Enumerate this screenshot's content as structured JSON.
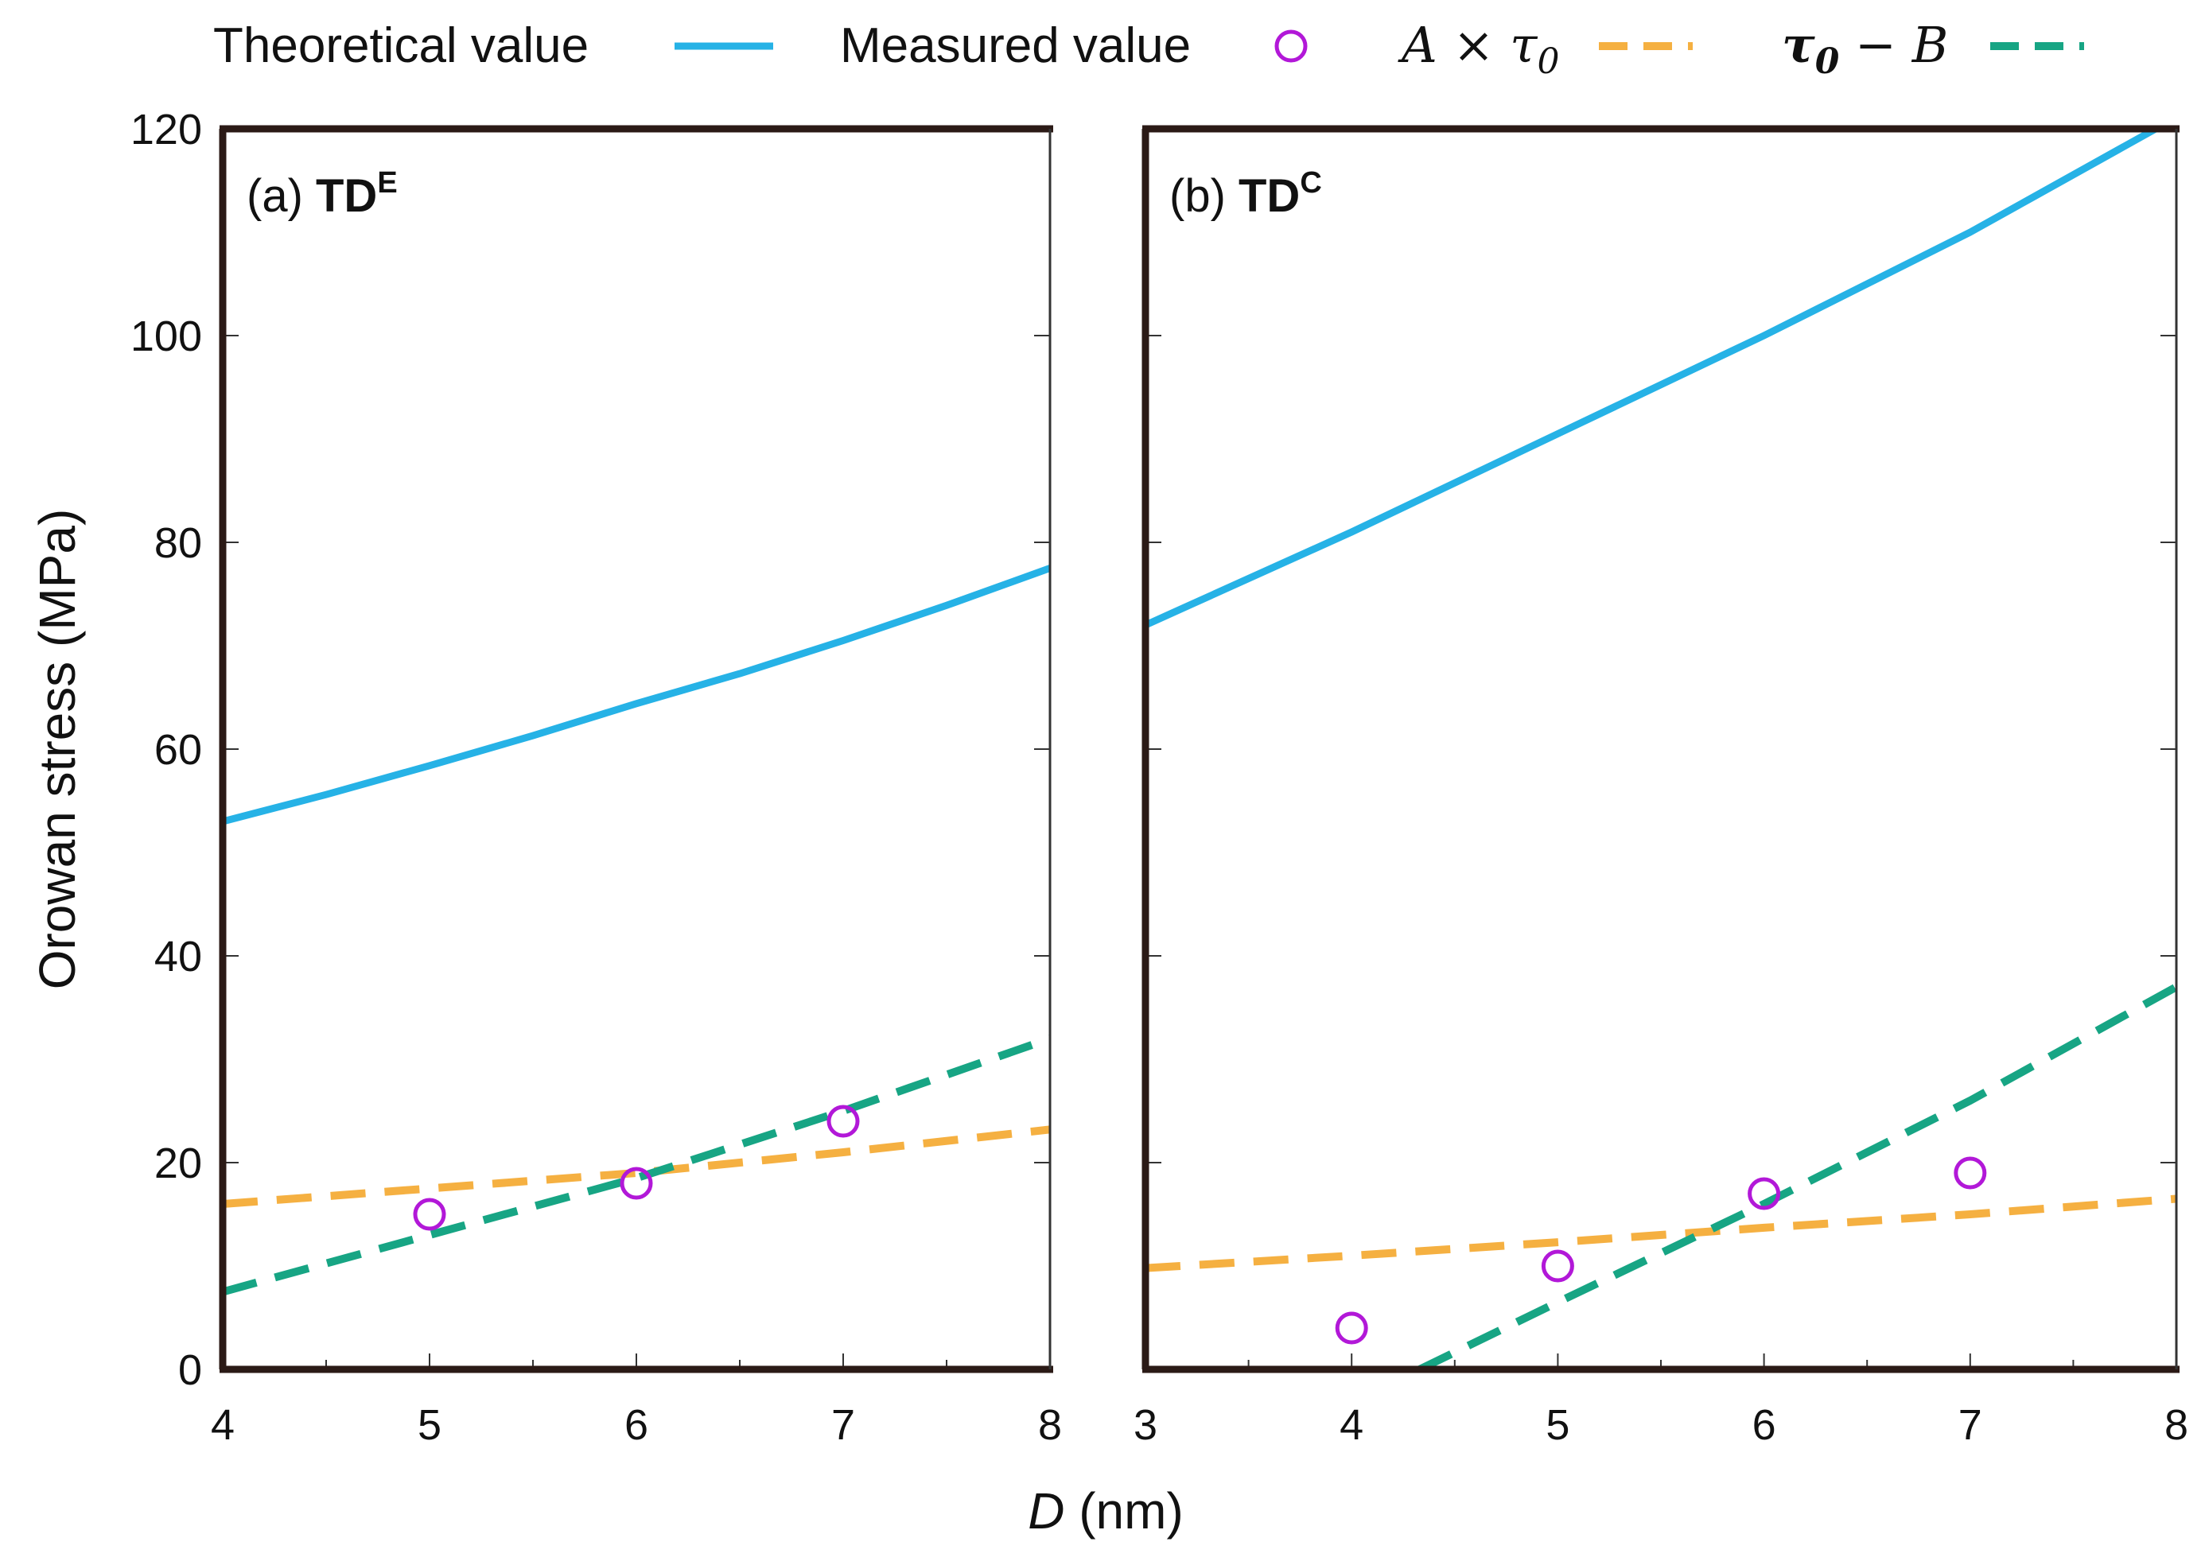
{
  "chart_data": {
    "type": "line",
    "legend": {
      "position": "top",
      "items": [
        {
          "label": "Theoretical value",
          "style": "solid",
          "color": "#26b2e6"
        },
        {
          "label": "Measured value",
          "style": "marker-circle",
          "color": "#b218d8"
        },
        {
          "label": "A × τ",
          "subscript": "0",
          "style": "dashed",
          "color": "#f5b041"
        },
        {
          "label": "τ",
          "subscript": "0",
          "suffix": " − B",
          "style": "dashed",
          "color": "#17a584"
        }
      ]
    },
    "ylabel": "Orowan stress (MPa)",
    "xlabel_italic": "D",
    "xlabel_rest": " (nm)",
    "ylim": [
      0,
      120
    ],
    "yticks": [
      0,
      20,
      40,
      60,
      80,
      100,
      120
    ],
    "panels": [
      {
        "id": "a",
        "label_prefix": "(a) ",
        "label_main": "TD",
        "label_sup": "E",
        "xlim": [
          4,
          8
        ],
        "xticks": [
          4,
          5,
          6,
          7,
          8
        ],
        "series": [
          {
            "name": "Theoretical value",
            "kind": "line",
            "color": "#26b2e6",
            "x": [
              4,
              4.5,
              5,
              5.5,
              6,
              6.5,
              7,
              7.5,
              8
            ],
            "y": [
              53,
              55.6,
              58.4,
              61.3,
              64.4,
              67.3,
              70.5,
              73.9,
              77.5
            ]
          },
          {
            "name": "Measured value",
            "kind": "points",
            "color": "#b218d8",
            "x": [
              5,
              6,
              7
            ],
            "y": [
              15,
              18,
              24
            ]
          },
          {
            "name": "A × τ0",
            "kind": "dashed",
            "color": "#f5b041",
            "x": [
              4,
              5,
              6,
              7,
              8
            ],
            "y": [
              16,
              17.5,
              19,
              21,
              23.2
            ]
          },
          {
            "name": "τ0 − B",
            "kind": "dashed",
            "color": "#17a584",
            "x": [
              4,
              5,
              6,
              7,
              8
            ],
            "y": [
              7.5,
              13,
              18.5,
              25,
              32
            ]
          }
        ]
      },
      {
        "id": "b",
        "label_prefix": "(b) ",
        "label_main": "TD",
        "label_sup": "C",
        "xlim": [
          3,
          8
        ],
        "xticks": [
          3,
          4,
          5,
          6,
          7,
          8
        ],
        "series": [
          {
            "name": "Theoretical value",
            "kind": "line",
            "color": "#26b2e6",
            "x": [
              3,
              4,
              5,
              6,
              7,
              7.9
            ],
            "y": [
              72,
              81,
              90.5,
              100,
              110,
              120
            ]
          },
          {
            "name": "Measured value",
            "kind": "points",
            "color": "#b218d8",
            "x": [
              4,
              5,
              6,
              7
            ],
            "y": [
              4,
              10,
              17,
              19
            ]
          },
          {
            "name": "A × τ0",
            "kind": "dashed",
            "color": "#f5b041",
            "x": [
              3,
              4,
              5,
              6,
              7,
              8
            ],
            "y": [
              9.8,
              11,
              12.3,
              13.7,
              15,
              16.5
            ]
          },
          {
            "name": "τ0 − B",
            "kind": "dashed",
            "color": "#17a584",
            "x": [
              4.33,
              5,
              6,
              7,
              8
            ],
            "y": [
              0,
              6.5,
              16,
              26,
              37
            ]
          }
        ]
      }
    ]
  }
}
